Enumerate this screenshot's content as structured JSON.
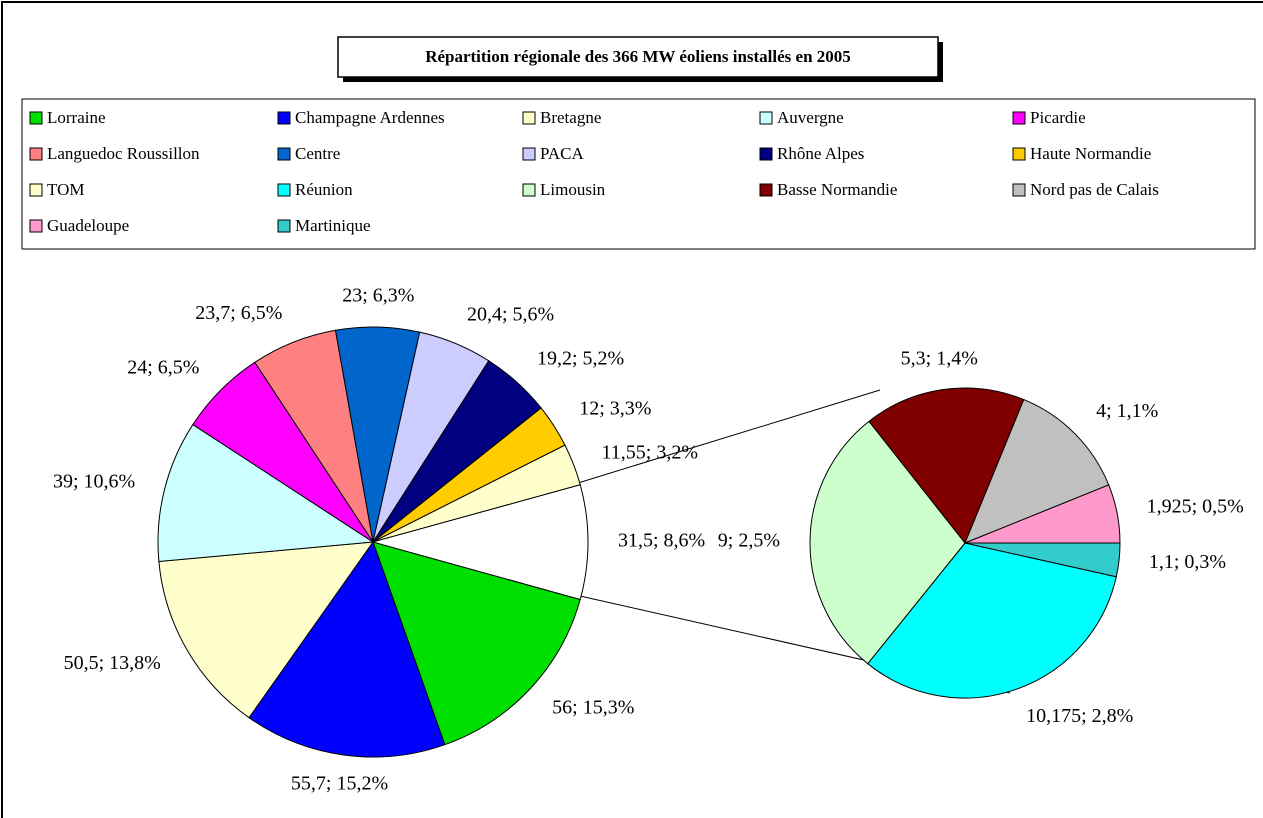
{
  "chart_data": [
    {
      "type": "pie",
      "title": "Répartition régionale des 366 MW éoliens installés en 2005",
      "categories": [
        "Lorraine",
        "Champagne Ardennes",
        "Bretagne",
        "Auvergne",
        "Picardie",
        "Languedoc Roussillon",
        "Centre",
        "PACA",
        "Rhône Alpes",
        "Haute Normandie",
        "TOM",
        null
      ],
      "values": [
        56,
        55.7,
        50.5,
        39,
        24,
        23.7,
        23,
        20.4,
        19.2,
        12,
        11.55,
        31.5
      ],
      "value_labels": [
        "56; 15,3%",
        "55,7; 15,2%",
        "50,5; 13,8%",
        "39; 10,6%",
        "24; 6,5%",
        "23,7; 6,5%",
        "23; 6,3%",
        "20,4; 5,6%",
        "19,2; 5,2%",
        "12; 3,3%",
        "11,55; 3,2%",
        "31,5; 8,6%"
      ],
      "colors": [
        "#00e000",
        "#0000ff",
        "#ffffcc",
        "#ccffff",
        "#ff00ff",
        "#ff8080",
        "#0066cc",
        "#ccccff",
        "#000080",
        "#ffcc00",
        "#ffffcc",
        "#ffffff"
      ]
    },
    {
      "type": "pie",
      "categories": [
        "Réunion",
        "Limousin",
        "Basse Normandie",
        "Nord pas de Calais",
        "Guadeloupe",
        "Martinique"
      ],
      "values": [
        10.175,
        9,
        5.3,
        4,
        1.925,
        1.1
      ],
      "value_labels": [
        "10,175; 2,8%",
        "9; 2,5%",
        "5,3; 1,4%",
        "4; 1,1%",
        "1,925; 0,5%",
        "1,1; 0,3%"
      ],
      "colors": [
        "#00ffff",
        "#ccffcc",
        "#800000",
        "#c0c0c0",
        "#ff99cc",
        "#33cccc"
      ]
    }
  ]
}
